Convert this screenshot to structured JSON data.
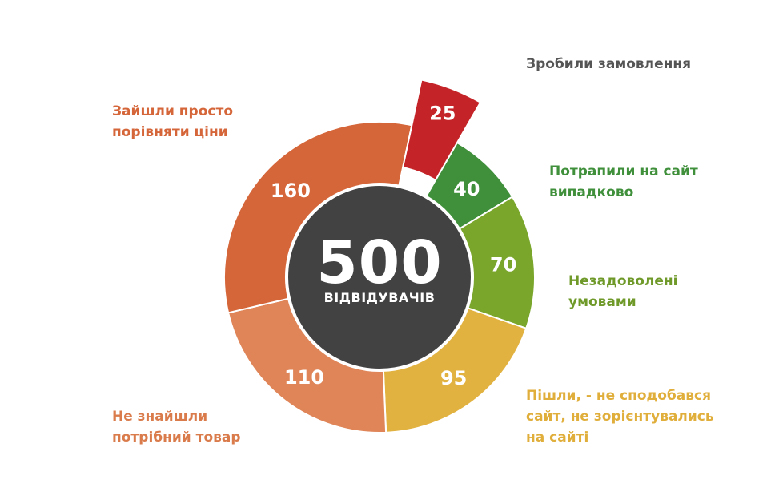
{
  "chart_data": {
    "type": "pie",
    "center": {
      "value": "500",
      "caption": "ВІДВІДУВАЧІВ"
    },
    "slices": [
      {
        "label": "Потрапили на сайт\nвипадково",
        "value": 40,
        "color": "#3f8f3b"
      },
      {
        "label": "Незадоволені\nумовами",
        "value": 70,
        "color": "#7aa62c"
      },
      {
        "label": "Пішли, - не сподобався\nсайт, не зорієнтувались\nна сайті",
        "value": 95,
        "color": "#e2b241"
      },
      {
        "label": "Не знайшли\nпотрібний товар",
        "value": 110,
        "color": "#df8558"
      },
      {
        "label": "Зайшли просто\nпорівняти ціни",
        "value": 160,
        "color": "#d5663a"
      },
      {
        "label": "Зробили замовлення",
        "value": 25,
        "color": "#c42428",
        "exploded": true
      }
    ],
    "label_colors": [
      "#3f8f3b",
      "#6f9a2a",
      "#e0ae3a",
      "#d97b4b",
      "#d5663a",
      "#555555"
    ]
  }
}
